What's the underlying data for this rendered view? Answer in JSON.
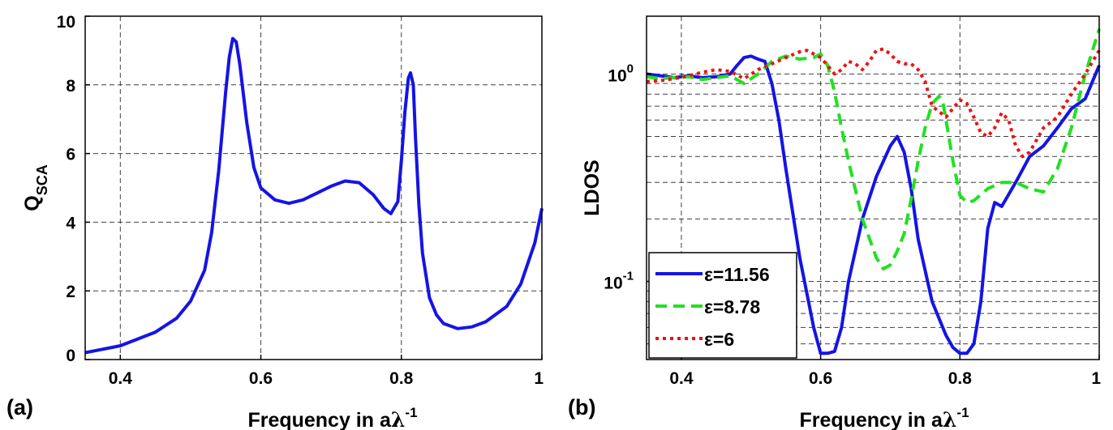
{
  "chart_data": [
    {
      "type": "line",
      "panel_label": "(a)",
      "xlabel": {
        "main": "Frequency in a",
        "lambda": "λ",
        "exp": "-1"
      },
      "ylabel": {
        "main": "Q",
        "sub": "SCA"
      },
      "xlim": [
        0.35,
        1.0
      ],
      "ylim": [
        0,
        10
      ],
      "xticks": [
        {
          "v": 0.4,
          "label": "0.4"
        },
        {
          "v": 0.6,
          "label": "0.6"
        },
        {
          "v": 0.8,
          "label": "0.8"
        },
        {
          "v": 1.0,
          "label": "1"
        }
      ],
      "yticks": [
        {
          "v": 0,
          "label": "0"
        },
        {
          "v": 2,
          "label": "2"
        },
        {
          "v": 4,
          "label": "4"
        },
        {
          "v": 6,
          "label": "6"
        },
        {
          "v": 8,
          "label": "8"
        },
        {
          "v": 10,
          "label": "10"
        }
      ],
      "grid": true,
      "series": [
        {
          "color": "#1414e6",
          "dash": "solid",
          "x": [
            0.35,
            0.4,
            0.45,
            0.48,
            0.5,
            0.52,
            0.53,
            0.54,
            0.55,
            0.555,
            0.56,
            0.565,
            0.57,
            0.58,
            0.59,
            0.6,
            0.62,
            0.64,
            0.66,
            0.68,
            0.7,
            0.72,
            0.74,
            0.76,
            0.775,
            0.785,
            0.795,
            0.8,
            0.805,
            0.81,
            0.813,
            0.817,
            0.82,
            0.825,
            0.83,
            0.84,
            0.85,
            0.86,
            0.88,
            0.9,
            0.92,
            0.95,
            0.97,
            0.99,
            1.0
          ],
          "y": [
            0.2,
            0.4,
            0.8,
            1.2,
            1.7,
            2.6,
            3.7,
            5.5,
            7.8,
            8.8,
            9.35,
            9.25,
            8.6,
            6.9,
            5.6,
            5.0,
            4.65,
            4.55,
            4.65,
            4.85,
            5.05,
            5.2,
            5.15,
            4.8,
            4.4,
            4.25,
            4.6,
            5.8,
            7.2,
            8.2,
            8.35,
            8.0,
            6.5,
            4.5,
            3.1,
            1.8,
            1.3,
            1.05,
            0.9,
            0.95,
            1.1,
            1.55,
            2.2,
            3.4,
            4.4
          ]
        }
      ]
    },
    {
      "type": "line",
      "panel_label": "(b)",
      "xlabel": {
        "main": "Frequency in a",
        "lambda": "λ",
        "exp": "-1"
      },
      "ylabel": {
        "main": "LDOS"
      },
      "xscale": "linear",
      "yscale": "log",
      "xlim": [
        0.35,
        1.0
      ],
      "ylim": [
        0.042,
        1.9
      ],
      "xticks": [
        {
          "v": 0.4,
          "label": "0.4"
        },
        {
          "v": 0.6,
          "label": "0.6"
        },
        {
          "v": 0.8,
          "label": "0.8"
        },
        {
          "v": 1.0,
          "label": "1"
        }
      ],
      "yticks": [
        {
          "v": 0.1,
          "base": "10",
          "exp": "-1"
        },
        {
          "v": 1.0,
          "base": "10",
          "exp": "0"
        }
      ],
      "minor_y": [
        0.05,
        0.06,
        0.07,
        0.08,
        0.09,
        0.2,
        0.3,
        0.4,
        0.5,
        0.6,
        0.7,
        0.8,
        0.9
      ],
      "grid": true,
      "legend_position": "bottom-left",
      "series": [
        {
          "name": "ε=11.56",
          "color": "#1414e6",
          "dash": "solid",
          "x": [
            0.35,
            0.37,
            0.39,
            0.41,
            0.43,
            0.45,
            0.47,
            0.48,
            0.49,
            0.5,
            0.51,
            0.52,
            0.53,
            0.54,
            0.55,
            0.57,
            0.59,
            0.6,
            0.61,
            0.62,
            0.63,
            0.64,
            0.66,
            0.68,
            0.7,
            0.71,
            0.72,
            0.73,
            0.74,
            0.76,
            0.78,
            0.79,
            0.8,
            0.81,
            0.82,
            0.83,
            0.84,
            0.85,
            0.86,
            0.88,
            0.9,
            0.92,
            0.94,
            0.96,
            0.98,
            1.0
          ],
          "y": [
            1.0,
            0.98,
            0.96,
            0.98,
            0.96,
            0.97,
            1.0,
            1.1,
            1.2,
            1.22,
            1.18,
            1.15,
            0.9,
            0.6,
            0.35,
            0.13,
            0.06,
            0.045,
            0.045,
            0.046,
            0.06,
            0.1,
            0.2,
            0.32,
            0.45,
            0.5,
            0.42,
            0.28,
            0.16,
            0.08,
            0.055,
            0.048,
            0.045,
            0.045,
            0.05,
            0.08,
            0.18,
            0.24,
            0.23,
            0.3,
            0.4,
            0.45,
            0.55,
            0.68,
            0.76,
            1.1
          ]
        },
        {
          "name": "ε=8.78",
          "color": "#22e022",
          "dash": "dashed",
          "x": [
            0.35,
            0.37,
            0.39,
            0.41,
            0.43,
            0.45,
            0.47,
            0.49,
            0.51,
            0.53,
            0.55,
            0.57,
            0.59,
            0.6,
            0.61,
            0.62,
            0.63,
            0.64,
            0.66,
            0.68,
            0.69,
            0.7,
            0.71,
            0.72,
            0.73,
            0.74,
            0.75,
            0.76,
            0.77,
            0.775,
            0.78,
            0.79,
            0.8,
            0.81,
            0.82,
            0.84,
            0.86,
            0.88,
            0.9,
            0.92,
            0.94,
            0.96,
            0.98,
            1.0
          ],
          "y": [
            0.97,
            0.95,
            0.96,
            0.97,
            0.94,
            0.96,
            0.98,
            0.9,
            1.0,
            1.15,
            1.22,
            1.18,
            1.2,
            1.25,
            1.1,
            0.82,
            0.55,
            0.38,
            0.2,
            0.13,
            0.115,
            0.12,
            0.14,
            0.17,
            0.25,
            0.38,
            0.55,
            0.72,
            0.78,
            0.75,
            0.6,
            0.38,
            0.26,
            0.24,
            0.245,
            0.28,
            0.3,
            0.3,
            0.28,
            0.27,
            0.35,
            0.55,
            1.0,
            1.65
          ]
        },
        {
          "name": "ε=6",
          "color": "#ee1111",
          "dash": "dotted",
          "x": [
            0.35,
            0.37,
            0.39,
            0.41,
            0.43,
            0.45,
            0.47,
            0.49,
            0.51,
            0.53,
            0.55,
            0.57,
            0.58,
            0.59,
            0.6,
            0.61,
            0.62,
            0.63,
            0.64,
            0.65,
            0.66,
            0.67,
            0.68,
            0.69,
            0.7,
            0.71,
            0.72,
            0.73,
            0.74,
            0.75,
            0.76,
            0.78,
            0.8,
            0.81,
            0.82,
            0.83,
            0.84,
            0.85,
            0.86,
            0.87,
            0.88,
            0.89,
            0.9,
            0.92,
            0.94,
            0.96,
            0.98,
            1.0
          ],
          "y": [
            0.92,
            0.93,
            0.95,
            0.98,
            1.02,
            1.05,
            1.03,
            0.95,
            1.05,
            1.12,
            1.2,
            1.28,
            1.3,
            1.25,
            1.2,
            1.1,
            1.0,
            1.05,
            1.15,
            1.12,
            1.05,
            1.15,
            1.3,
            1.32,
            1.25,
            1.15,
            1.12,
            1.12,
            1.05,
            0.92,
            0.7,
            0.62,
            0.75,
            0.72,
            0.62,
            0.52,
            0.5,
            0.55,
            0.65,
            0.6,
            0.45,
            0.4,
            0.42,
            0.55,
            0.62,
            0.8,
            1.0,
            1.3
          ]
        }
      ]
    }
  ]
}
